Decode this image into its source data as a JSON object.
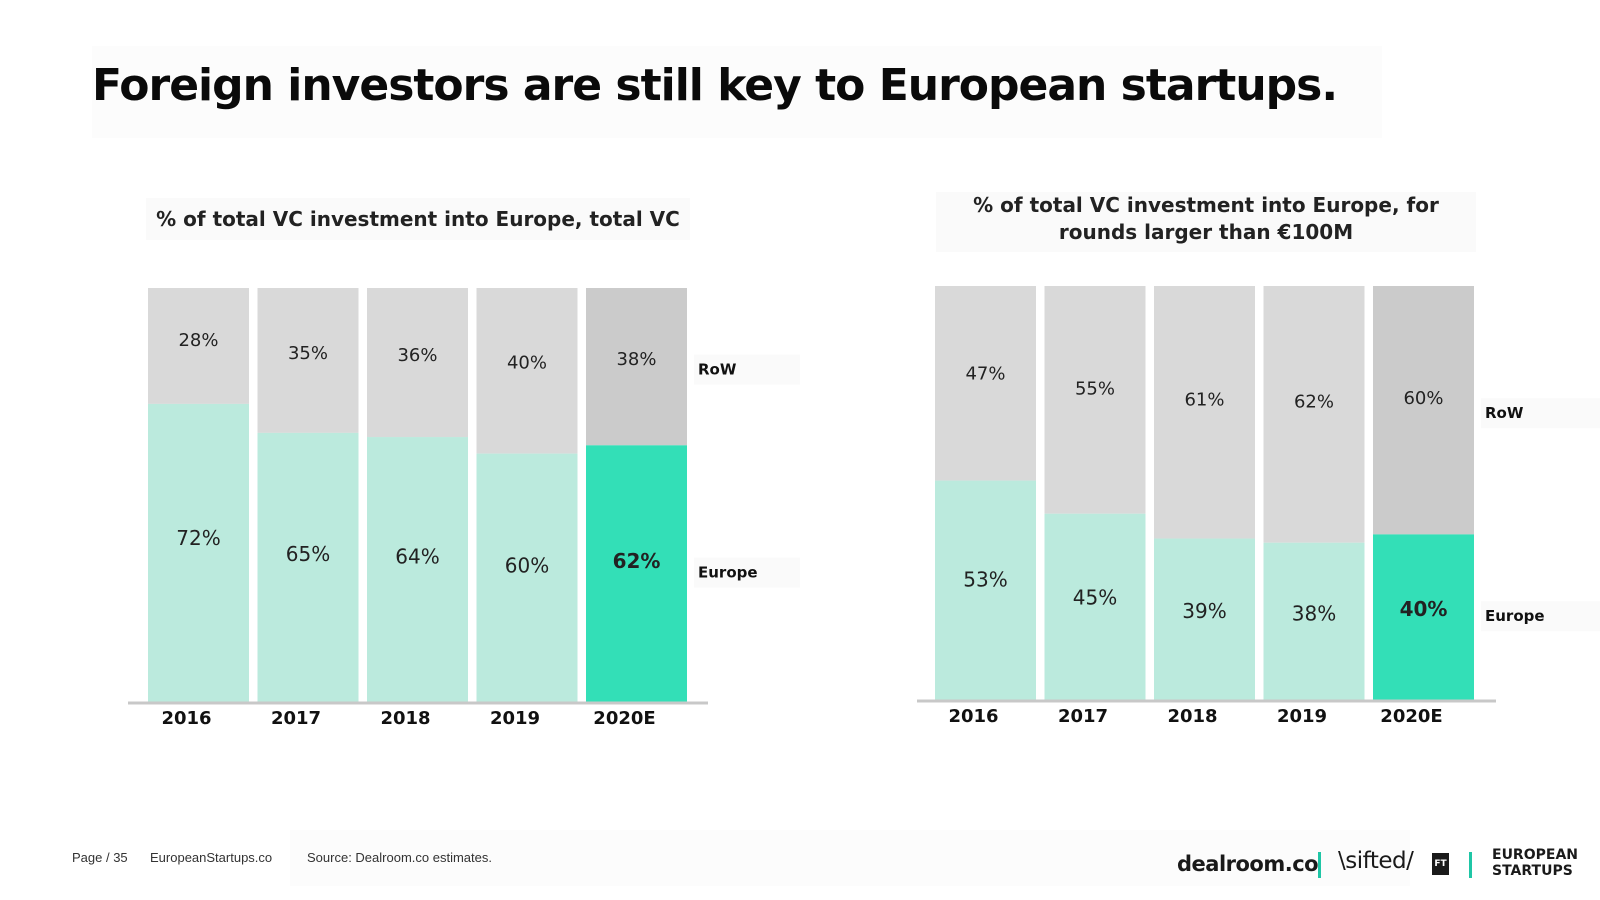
{
  "title": "Foreign investors are still key to European startups.",
  "footer": {
    "page": "Page / 35",
    "site": "EuropeanStartups.co",
    "source": "Source: Dealroom.co estimates."
  },
  "logos": {
    "dealroom": "dealroom.co",
    "sifted": "\\sifted/",
    "ft": "FT",
    "european": "EUROPEAN",
    "startups": "STARTUPS"
  },
  "colors": {
    "europe": "#bbeadd",
    "europe_highlight": "#33dfb7",
    "row": "#d9d9d9",
    "row_highlight": "#cbcbcb",
    "separator": "#1fc6a6"
  },
  "chart_data": [
    {
      "type": "bar",
      "stacked": true,
      "title": "% of total VC investment into Europe, total VC",
      "categories": [
        "2016",
        "2017",
        "2018",
        "2019",
        "2020E"
      ],
      "series": [
        {
          "name": "Europe",
          "values": [
            72,
            65,
            64,
            60,
            62
          ],
          "labels": [
            "72%",
            "65%",
            "64%",
            "60%",
            "62%"
          ]
        },
        {
          "name": "RoW",
          "values": [
            28,
            35,
            36,
            40,
            38
          ],
          "labels": [
            "28%",
            "35%",
            "36%",
            "40%",
            "38%"
          ]
        }
      ],
      "highlight_category": "2020E",
      "ylim": [
        0,
        100
      ]
    },
    {
      "type": "bar",
      "stacked": true,
      "title": "% of total VC investment into Europe, for rounds larger than €100M",
      "categories": [
        "2016",
        "2017",
        "2018",
        "2019",
        "2020E"
      ],
      "series": [
        {
          "name": "Europe",
          "values": [
            53,
            45,
            39,
            38,
            40
          ],
          "labels": [
            "53%",
            "45%",
            "39%",
            "38%",
            "40%"
          ]
        },
        {
          "name": "RoW",
          "values": [
            47,
            55,
            61,
            62,
            60
          ],
          "labels": [
            "47%",
            "55%",
            "61%",
            "62%",
            "60%"
          ]
        }
      ],
      "highlight_category": "2020E",
      "ylim": [
        0,
        100
      ]
    }
  ]
}
